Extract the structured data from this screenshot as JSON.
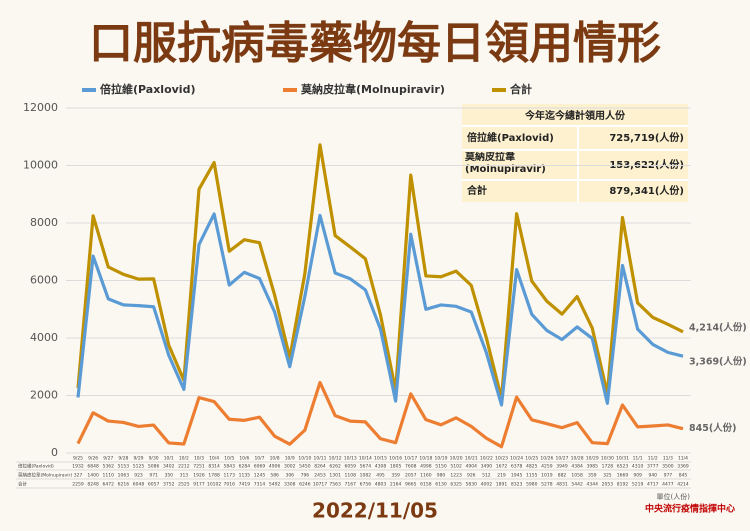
{
  "chart_data": {
    "type": "line",
    "title": "口服抗病毒藥物每日領用情形",
    "date": "2022/11/05",
    "unit_note": "單位(人份)",
    "source": "中央流行疫情指揮中心",
    "categories": [
      "9/25",
      "9/26",
      "9/27",
      "9/28",
      "9/29",
      "9/30",
      "10/1",
      "10/2",
      "10/3",
      "10/4",
      "10/5",
      "10/6",
      "10/7",
      "10/8",
      "10/9",
      "10/10",
      "10/11",
      "10/12",
      "10/13",
      "10/14",
      "10/15",
      "10/16",
      "10/17",
      "10/18",
      "10/19",
      "10/20",
      "10/21",
      "10/22",
      "10/23",
      "10/24",
      "10/25",
      "10/26",
      "10/27",
      "10/28",
      "10/29",
      "10/30",
      "10/31",
      "11/1",
      "11/2",
      "11/3",
      "11/4"
    ],
    "series": [
      {
        "name": "倍拉維(Paxlovid)",
        "color": "#5b9bd5",
        "values": [
          1932,
          6848,
          5362,
          5153,
          5125,
          5086,
          3402,
          2212,
          7251,
          8314,
          5843,
          6284,
          6069,
          4906,
          3002,
          5450,
          8264,
          6262,
          6059,
          5674,
          4308,
          1805,
          7608,
          4998,
          5150,
          5102,
          4904,
          3490,
          1672,
          6378,
          4825,
          4259,
          3949,
          4384,
          3985,
          1728,
          6523,
          4310,
          3777,
          3500,
          3369
        ],
        "value_labels": [
          null,
          null,
          null,
          null,
          null,
          null,
          null,
          null,
          null,
          null,
          null,
          null,
          null,
          null,
          null,
          null,
          null,
          null,
          null,
          null,
          null,
          null,
          null,
          null,
          null,
          null,
          null,
          null,
          null,
          null,
          null,
          null,
          null,
          null,
          null,
          null,
          null,
          null,
          null,
          null,
          "3,369(人份)"
        ]
      },
      {
        "name": "莫納皮拉韋(Molnupiravir)",
        "color": "#ed7d31",
        "values": [
          327,
          1400,
          1110,
          1063,
          923,
          971,
          350,
          313,
          1926,
          1788,
          1173,
          1135,
          1245,
          586,
          306,
          796,
          2453,
          1301,
          1108,
          1082,
          495,
          359,
          2057,
          1160,
          980,
          1223,
          926,
          512,
          219,
          1945,
          1155,
          1019,
          882,
          1058,
          359,
          325,
          1669,
          909,
          940,
          977,
          845
        ],
        "value_labels": [
          null,
          null,
          null,
          null,
          null,
          null,
          null,
          null,
          null,
          null,
          null,
          null,
          null,
          null,
          null,
          null,
          null,
          null,
          null,
          null,
          null,
          null,
          null,
          null,
          null,
          null,
          null,
          null,
          null,
          null,
          null,
          null,
          null,
          null,
          null,
          null,
          null,
          null,
          null,
          null,
          "845(人份)"
        ]
      },
      {
        "name": "合計",
        "color": "#bf9000",
        "values": [
          2259,
          8248,
          6472,
          6216,
          6048,
          6057,
          3752,
          2525,
          9177,
          10102,
          7016,
          7419,
          7314,
          5492,
          3308,
          6246,
          10717,
          7563,
          7167,
          6756,
          4803,
          2164,
          9665,
          6158,
          6130,
          6325,
          5830,
          4002,
          1891,
          8323,
          5980,
          5278,
          4831,
          5442,
          4344,
          2053,
          8192,
          5219,
          4717,
          4477,
          4214
        ],
        "value_labels": [
          null,
          null,
          null,
          null,
          null,
          null,
          null,
          null,
          null,
          null,
          null,
          null,
          null,
          null,
          null,
          null,
          null,
          null,
          null,
          null,
          null,
          null,
          null,
          null,
          null,
          null,
          null,
          null,
          null,
          null,
          null,
          null,
          null,
          null,
          null,
          null,
          null,
          null,
          null,
          null,
          "4,214(人份)"
        ]
      }
    ],
    "ylim": [
      0,
      12000
    ],
    "yticks": [
      0,
      2000,
      4000,
      6000,
      8000,
      10000,
      12000
    ],
    "grid": true,
    "summary_table": {
      "title": "今年迄今總計領用人份",
      "rows": [
        [
          "倍拉維(Paxlovid)",
          "725,719(人份)"
        ],
        [
          "莫納皮拉韋(Molnupiravir)",
          "153,622(人份)"
        ],
        [
          "合計",
          "879,341(人份)"
        ]
      ]
    }
  }
}
